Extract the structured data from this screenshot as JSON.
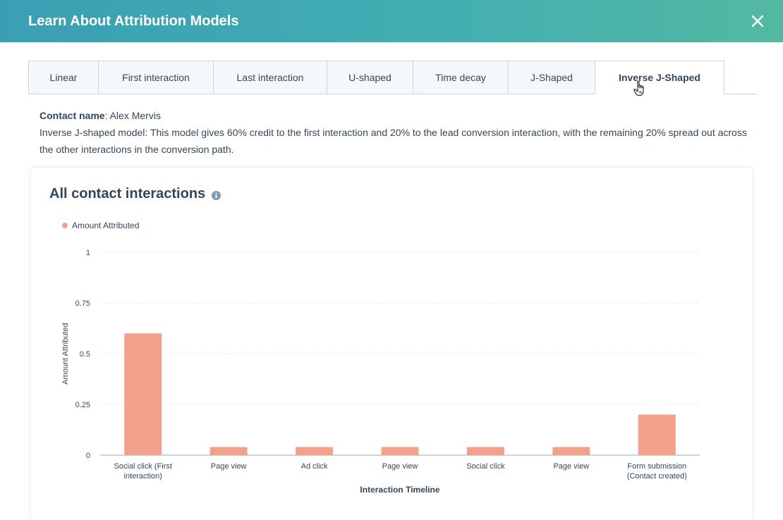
{
  "modal": {
    "title": "Learn About Attribution Models"
  },
  "tabs": [
    {
      "label": "Linear",
      "active": false
    },
    {
      "label": "First interaction",
      "active": false
    },
    {
      "label": "Last interaction",
      "active": false
    },
    {
      "label": "U-shaped",
      "active": false
    },
    {
      "label": "Time decay",
      "active": false
    },
    {
      "label": "J-Shaped",
      "active": false
    },
    {
      "label": "Inverse J-Shaped",
      "active": true
    }
  ],
  "contact": {
    "name_label": "Contact name",
    "name_value": ": Alex Mervis",
    "description": "Inverse J-shaped model: This model gives 60% credit to the first interaction and 20% to the lead conversion interaction, with the remaining 20% spread out across the other interactions in the conversion path."
  },
  "card": {
    "title": "All contact interactions"
  },
  "chart_data": {
    "type": "bar",
    "title": "All contact interactions",
    "xlabel": "Interaction Timeline",
    "ylabel": "Amount Attributed",
    "legend": {
      "entries": [
        "Amount Attributed"
      ],
      "placement": "top-left"
    },
    "ylim": [
      0,
      1
    ],
    "yticks": [
      0,
      0.25,
      0.5,
      0.75,
      1
    ],
    "ytick_labels": [
      "0",
      "0.25",
      "0.5",
      "0.75",
      "1"
    ],
    "grid": true,
    "categories": [
      [
        "Social click (First",
        "interaction)"
      ],
      [
        "Page view"
      ],
      [
        "Ad click"
      ],
      [
        "Page view"
      ],
      [
        "Social click"
      ],
      [
        "Page view"
      ],
      [
        "Form submission",
        "(Contact created)"
      ]
    ],
    "series": [
      {
        "name": "Amount Attributed",
        "values": [
          0.6,
          0.04,
          0.04,
          0.04,
          0.04,
          0.04,
          0.2
        ],
        "color": "#f2a18b"
      }
    ]
  },
  "colors": {
    "header_start": "#3a9fb3",
    "header_end": "#53b9a2",
    "bar": "#f2a18b",
    "text": "#33475b"
  }
}
